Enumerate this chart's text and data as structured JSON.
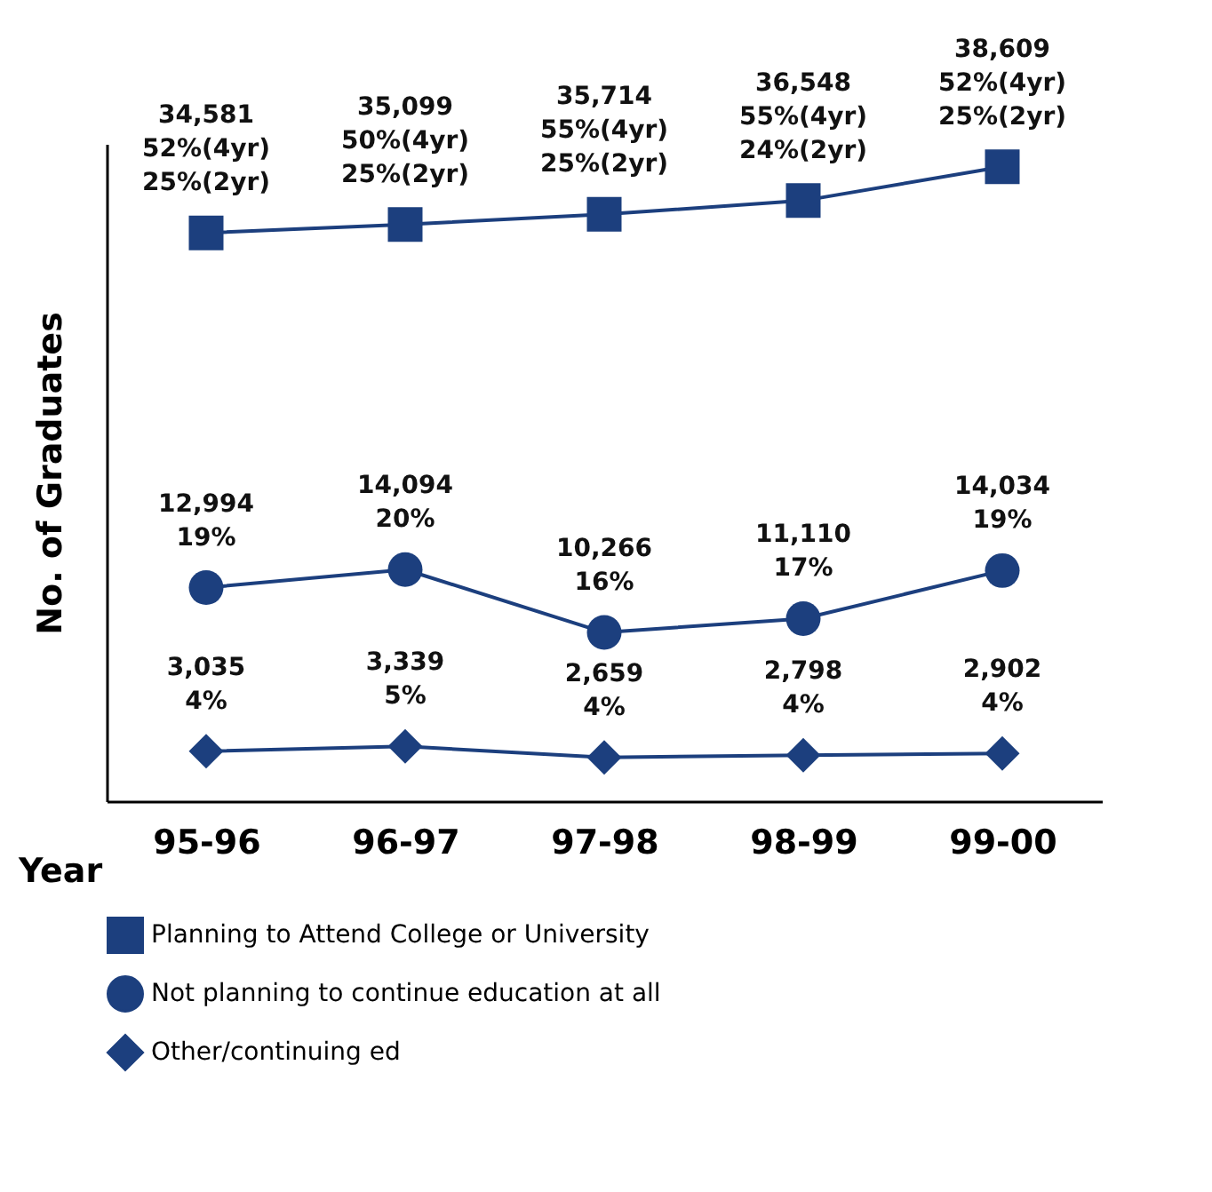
{
  "chart_data": {
    "type": "line",
    "xlabel": "Year",
    "ylabel": "No. of Graduates",
    "categories": [
      "95-96",
      "96-97",
      "97-98",
      "98-99",
      "99-00"
    ],
    "grid": false,
    "legend": "bottom",
    "series": [
      {
        "name": "Planning to Attend College or University",
        "color": "#1c3f7e",
        "marker": "square",
        "values": [
          34581,
          35099,
          35714,
          36548,
          38609
        ],
        "value_labels": [
          "34,581\n52%(4yr)\n25%(2yr)",
          "35,099\n50%(4yr)\n25%(2yr)",
          "35,714\n55%(4yr)\n25%(2yr)",
          "36,548\n55%(4yr)\n24%(2yr)",
          "38,609\n52%(4yr)\n25%(2yr)"
        ]
      },
      {
        "name": "Not planning to continue education at all",
        "color": "#1c3f7e",
        "marker": "circle",
        "values": [
          12994,
          14094,
          10266,
          11110,
          14034
        ],
        "value_labels": [
          "12,994\n19%",
          "14,094\n20%",
          "10,266\n16%",
          "11,110\n17%",
          "14,034\n19%"
        ]
      },
      {
        "name": "Other/continuing ed",
        "color": "#1c3f7e",
        "marker": "diamond",
        "values": [
          3035,
          3339,
          2659,
          2798,
          2902
        ],
        "value_labels": [
          "3,035\n4%",
          "3,339\n5%",
          "2,659\n4%",
          "2,798\n4%",
          "2,902\n4%"
        ]
      }
    ]
  }
}
